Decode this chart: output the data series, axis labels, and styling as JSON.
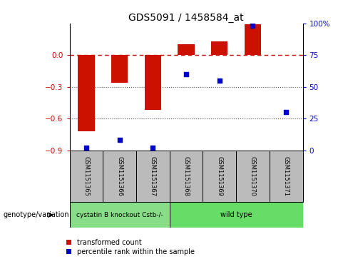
{
  "title": "GDS5091 / 1458584_at",
  "samples": [
    "GSM1151365",
    "GSM1151366",
    "GSM1151367",
    "GSM1151368",
    "GSM1151369",
    "GSM1151370",
    "GSM1151371"
  ],
  "transformed_count": [
    -0.72,
    -0.26,
    -0.52,
    0.1,
    0.13,
    0.29,
    0.0
  ],
  "percentile_rank": [
    2,
    8,
    2,
    60,
    55,
    98,
    30
  ],
  "ylim_left": [
    -0.9,
    0.3
  ],
  "ylim_right": [
    0,
    100
  ],
  "yticks_left": [
    0,
    -0.3,
    -0.6,
    -0.9
  ],
  "yticks_right": [
    0,
    25,
    50,
    75,
    100
  ],
  "bar_color": "#cc1100",
  "dot_color": "#0000cc",
  "zero_line_color": "#cc0000",
  "dotted_line_color": "#555555",
  "groups": [
    {
      "label": "cystatin B knockout Cstb-/-",
      "n_samples": 3,
      "color": "#88dd88"
    },
    {
      "label": "wild type",
      "n_samples": 4,
      "color": "#66dd66"
    }
  ],
  "group_row_label": "genotype/variation",
  "legend_entries": [
    "transformed count",
    "percentile rank within the sample"
  ],
  "sample_box_color": "#bbbbbb",
  "bg_color": "#ffffff"
}
